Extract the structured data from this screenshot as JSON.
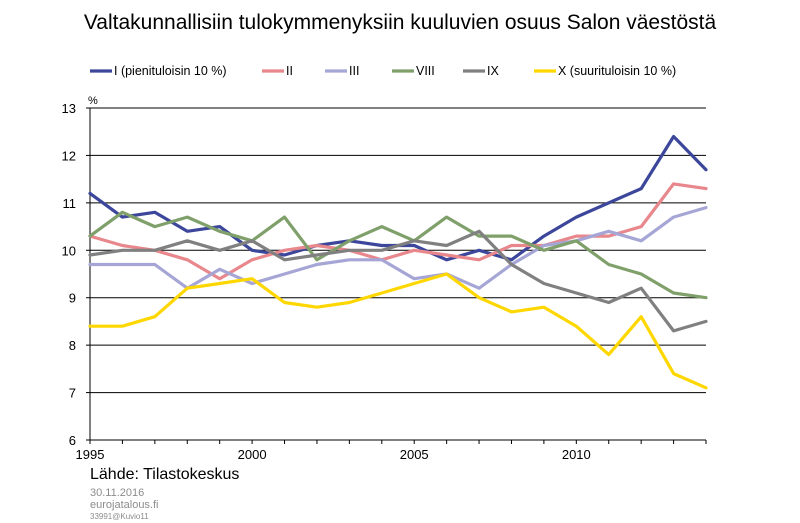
{
  "chart_data": {
    "type": "line",
    "title": "Valtakunnallisiin tulokymmenyksiin kuuluvien osuus Salon väestöstä",
    "ylabel": "%",
    "xlabel": "",
    "x": [
      1995,
      1996,
      1997,
      1998,
      1999,
      2000,
      2001,
      2002,
      2003,
      2004,
      2005,
      2006,
      2007,
      2008,
      2009,
      2010,
      2011,
      2012,
      2013,
      2014
    ],
    "xticks": [
      1995,
      2000,
      2005,
      2010
    ],
    "yticks": [
      6,
      7,
      8,
      9,
      10,
      11,
      12,
      13
    ],
    "xlim": [
      1995,
      2014
    ],
    "ylim": [
      6,
      13
    ],
    "grid": false,
    "legend_position": "top",
    "series": [
      {
        "name": "I (pienituloisin 10 %)",
        "color": "#3c479b",
        "values": [
          11.2,
          10.7,
          10.8,
          10.4,
          10.5,
          10.0,
          9.9,
          10.1,
          10.2,
          10.1,
          10.1,
          9.8,
          10.0,
          9.8,
          10.3,
          10.7,
          11.0,
          11.3,
          12.4,
          11.7
        ]
      },
      {
        "name": "II",
        "color": "#e8878c",
        "values": [
          10.3,
          10.1,
          10.0,
          9.8,
          9.4,
          9.8,
          10.0,
          10.1,
          10.0,
          9.8,
          10.0,
          9.9,
          9.8,
          10.1,
          10.1,
          10.3,
          10.3,
          10.5,
          11.4,
          11.3
        ]
      },
      {
        "name": "III",
        "color": "#a6a6d6",
        "values": [
          9.7,
          9.7,
          9.7,
          9.2,
          9.6,
          9.3,
          9.5,
          9.7,
          9.8,
          9.8,
          9.4,
          9.5,
          9.2,
          9.7,
          10.1,
          10.2,
          10.4,
          10.2,
          10.7,
          10.9
        ]
      },
      {
        "name": "VIII",
        "color": "#7fa06a",
        "values": [
          10.3,
          10.8,
          10.5,
          10.7,
          10.4,
          10.2,
          10.7,
          9.8,
          10.2,
          10.5,
          10.2,
          10.7,
          10.3,
          10.3,
          10.0,
          10.2,
          9.7,
          9.5,
          9.1,
          9.0
        ]
      },
      {
        "name": "IX",
        "color": "#808080",
        "values": [
          9.9,
          10.0,
          10.0,
          10.2,
          10.0,
          10.2,
          9.8,
          9.9,
          10.0,
          10.0,
          10.2,
          10.1,
          10.4,
          9.7,
          9.3,
          9.1,
          8.9,
          9.2,
          8.3,
          8.5
        ]
      },
      {
        "name": "X (suurituloisin 10 %)",
        "color": "#ffd700",
        "values": [
          8.4,
          8.4,
          8.6,
          9.2,
          9.3,
          9.4,
          8.9,
          8.8,
          8.9,
          9.1,
          9.3,
          9.5,
          9.0,
          8.7,
          8.8,
          8.4,
          7.8,
          8.6,
          7.4,
          7.1
        ]
      }
    ]
  },
  "footer": {
    "source": "Lähde: Tilastokeskus",
    "date": "30.11.2016",
    "site": "eurojatalous.fi",
    "code": "33991@Kuvio11"
  }
}
